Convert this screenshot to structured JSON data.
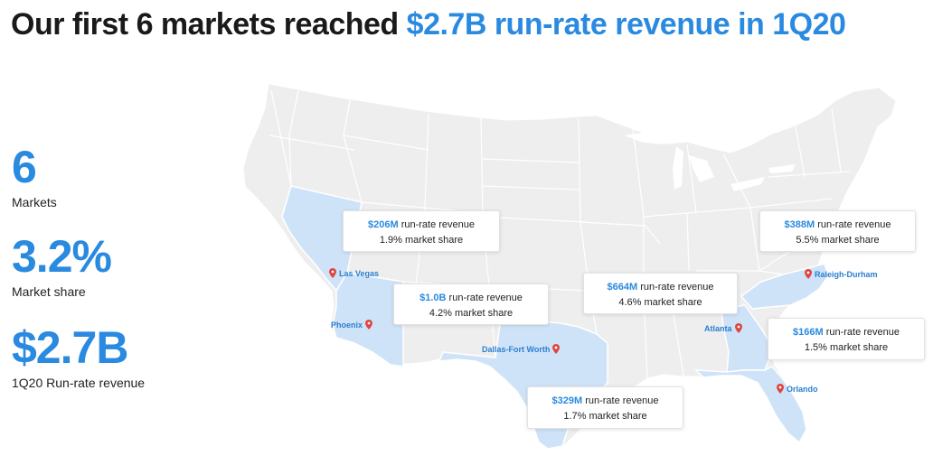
{
  "title": {
    "prefix": "Our first 6 markets reached",
    "highlight": "$2.7B run-rate revenue in 1Q20"
  },
  "stats": [
    {
      "value": "6",
      "label": "Markets"
    },
    {
      "value": "3.2%",
      "label": "Market share"
    },
    {
      "value": "$2.7B",
      "label": "1Q20 Run-rate revenue"
    }
  ],
  "markets": [
    {
      "city": "Las Vegas",
      "amount": "$206M",
      "revenue_label": "run-rate revenue",
      "share": "1.9% market share"
    },
    {
      "city": "Phoenix",
      "amount": "$1.0B",
      "revenue_label": "run-rate revenue",
      "share": "4.2% market share"
    },
    {
      "city": "Dallas-Fort Worth",
      "amount": "$329M",
      "revenue_label": "run-rate revenue",
      "share": "1.7% market share"
    },
    {
      "city": "Atlanta",
      "amount": "$664M",
      "revenue_label": "run-rate revenue",
      "share": "4.6% market share"
    },
    {
      "city": "Raleigh-Durham",
      "amount": "$388M",
      "revenue_label": "run-rate revenue",
      "share": "5.5% market share"
    },
    {
      "city": "Orlando",
      "amount": "$166M",
      "revenue_label": "run-rate revenue",
      "share": "1.5% market share"
    }
  ],
  "colors": {
    "accent": "#2a8ae0",
    "map_fill": "#eeeeee",
    "state_border": "#ffffff",
    "highlight_fill": "#cfe3f8",
    "pin": "#e0443e"
  }
}
